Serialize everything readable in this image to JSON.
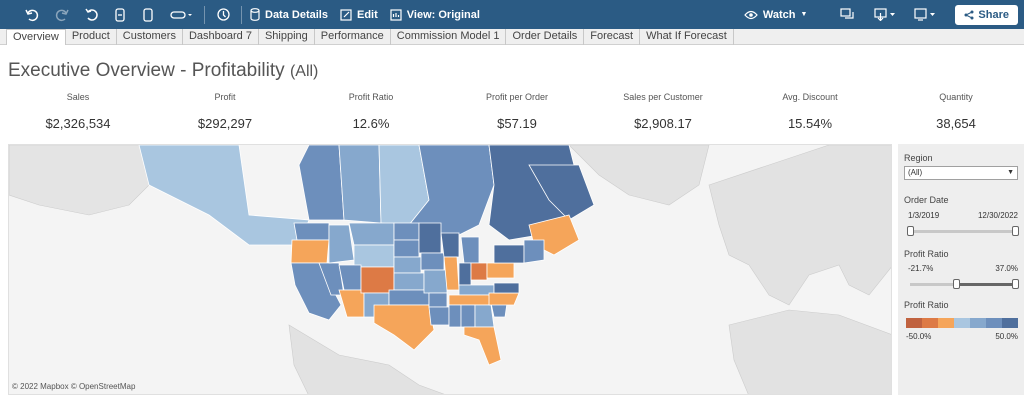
{
  "toolbar": {
    "data_details": "Data Details",
    "edit": "Edit",
    "view": "View: Original",
    "watch": "Watch",
    "share": "Share"
  },
  "tabs": [
    "Overview",
    "Product",
    "Customers",
    "Dashboard 7",
    "Shipping",
    "Performance",
    "Commission Model 1",
    "Order Details",
    "Forecast",
    "What If Forecast"
  ],
  "active_tab": "Overview",
  "title": {
    "main": "Executive Overview - Profitability",
    "filter": "(All)"
  },
  "kpis": [
    {
      "label": "Sales",
      "value": "$2,326,534"
    },
    {
      "label": "Profit",
      "value": "$292,297"
    },
    {
      "label": "Profit Ratio",
      "value": "12.6%"
    },
    {
      "label": "Profit per Order",
      "value": "$57.19"
    },
    {
      "label": "Sales per Customer",
      "value": "$2,908.17"
    },
    {
      "label": "Avg. Discount",
      "value": "15.54%"
    },
    {
      "label": "Quantity",
      "value": "38,654"
    }
  ],
  "map": {
    "attribution": "© 2022 Mapbox  © OpenStreetMap"
  },
  "filters": {
    "region": {
      "label": "Region",
      "value": "(All)"
    },
    "order_date": {
      "label": "Order Date",
      "min": "1/3/2019",
      "max": "12/30/2022"
    },
    "profit_ratio_filter": {
      "label": "Profit Ratio",
      "min": "-21.7%",
      "max": "37.0%"
    },
    "profit_ratio_legend": {
      "label": "Profit Ratio",
      "min": "-50.0%",
      "max": "50.0%",
      "colors": [
        "#c0623f",
        "#dd7a45",
        "#f5a55a",
        "#a9c6e0",
        "#86a8cd",
        "#6d8fbc",
        "#4f6f9d"
      ]
    }
  },
  "colors": {
    "toolbar": "#2b5b84",
    "profit_high": "#4f6f9d",
    "profit_low": "#dd7a45"
  }
}
